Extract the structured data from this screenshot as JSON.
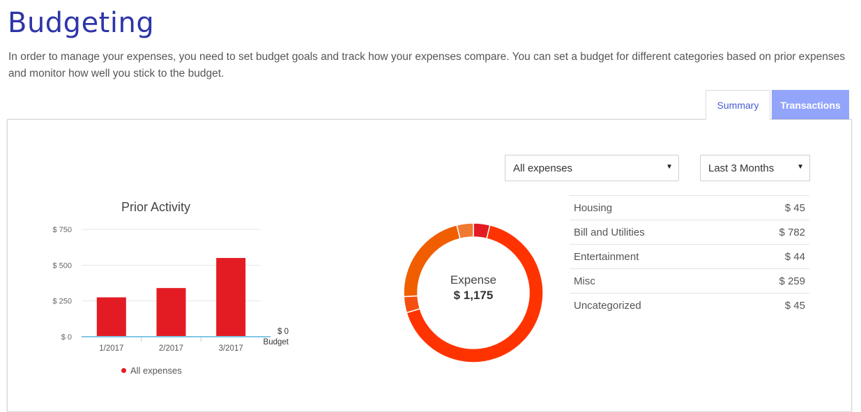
{
  "header": {
    "title": "Budgeting",
    "intro": "In order to manage your expenses, you need to set budget goals and track how your expenses compare. You can set a budget for different categories based on prior expenses and monitor how well you stick to the budget."
  },
  "tabs": [
    {
      "label": "Summary",
      "active": true
    },
    {
      "label": "Transactions",
      "active": false
    }
  ],
  "filters": {
    "category": "All expenses",
    "range": "Last 3 Months"
  },
  "prior_activity": {
    "legend": "All expenses",
    "budget_value": "$ 0",
    "budget_label": "Budget"
  },
  "donut": {
    "label": "Expense",
    "total": "$ 1,175"
  },
  "categories": [
    {
      "name": "Housing",
      "amount": "$ 45"
    },
    {
      "name": "Bill and Utilities",
      "amount": "$ 782"
    },
    {
      "name": "Entertainment",
      "amount": "$ 44"
    },
    {
      "name": "Misc",
      "amount": "$ 259"
    },
    {
      "name": "Uncategorized",
      "amount": "$ 45"
    }
  ],
  "chart_data": [
    {
      "type": "bar",
      "title": "Prior Activity",
      "categories": [
        "1/2017",
        "2/2017",
        "3/2017"
      ],
      "values": [
        275,
        340,
        550
      ],
      "ylim": [
        0,
        750
      ],
      "yticks": [
        0,
        250,
        500,
        750
      ],
      "ytick_labels": [
        "$ 0",
        "$ 250",
        "$ 500",
        "$ 750"
      ],
      "series_name": "All expenses",
      "color": "#e31c24",
      "budget_line_color": "#7fc6e6"
    },
    {
      "type": "pie",
      "title": "Expense",
      "labels": [
        "Housing",
        "Bill and Utilities",
        "Entertainment",
        "Misc",
        "Uncategorized"
      ],
      "values": [
        45,
        782,
        44,
        259,
        45
      ],
      "colors": [
        "#e31c24",
        "#ff3300",
        "#f54f12",
        "#f05e00",
        "#f07a32"
      ]
    }
  ]
}
